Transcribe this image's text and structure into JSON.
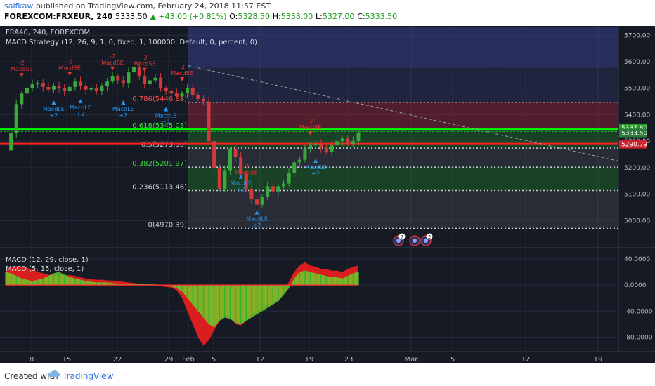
{
  "header": {
    "user": "saifkaw",
    "published": "published on TradingView.com, February 24, 2018 11:57 EST"
  },
  "symbol_line": {
    "symbol": "FOREXCOM:FRXEUR, 240",
    "price": "5333.50",
    "change": "▲ +43.00 (+0.81%)",
    "o_label": "O:",
    "o": "5328.50",
    "h_label": "H:",
    "h": "5338.00",
    "l_label": "L:",
    "l": "5327.00",
    "c_label": "C:",
    "c": "5333.50"
  },
  "legend": {
    "instrument": "FRA40, 240, FOREXCOM",
    "strategy": "MACD Strategy (12, 26, 9, 1, 0, fixed, 1, 100000, Default, 0, percent, 0)",
    "macd1": "MACD (12, 29, close, 1)",
    "macd2": "MACD (5, 15, close, 1)"
  },
  "colors": {
    "background": "#161a25",
    "bull": "#3aa83a",
    "bear": "#d03a3a",
    "fib_green": "#00ff00",
    "fib_red": "#ff2020",
    "label_text": "#cfd3dc",
    "signal_blue": "#2196f3",
    "signal_red": "#e53935"
  },
  "chart_data": [
    {
      "type": "candlestick",
      "title": "",
      "ylim": [
        4900,
        5730
      ],
      "y_ticks": [
        "5700.00",
        "5600.00",
        "5500.00",
        "5400.00",
        "5300.00",
        "5200.00",
        "5100.00",
        "5000.00"
      ],
      "x_ticks": [
        "8",
        "15",
        "22",
        "29",
        "Feb",
        "5",
        "12",
        "19",
        "23",
        "Mar",
        "5",
        "12",
        "19"
      ],
      "price_badges": [
        {
          "value": "5337.80",
          "color": "#1f9a1f"
        },
        {
          "value": "5333.50",
          "color": "#2a7a3a"
        },
        {
          "value": "5290.79",
          "color": "#d0202a"
        }
      ],
      "fib_levels": [
        {
          "label": "0.786(5446.88)",
          "ratio": 0.786,
          "value": 5446.88
        },
        {
          "label": "0.618(5345.03)",
          "ratio": 0.618,
          "value": 5345.03
        },
        {
          "label": "0.5(5273.50)",
          "ratio": 0.5,
          "value": 5273.5
        },
        {
          "label": "0.382(5201.97)",
          "ratio": 0.382,
          "value": 5201.97
        },
        {
          "label": "0.236(5113.46)",
          "ratio": 0.236,
          "value": 5113.46
        },
        {
          "label": "0(4970.39)",
          "ratio": 0,
          "value": 4970.39
        }
      ],
      "horizontal_lines": [
        {
          "value": 5345.03,
          "color": "#00ff00"
        },
        {
          "value": 5290.79,
          "color": "#ff2020"
        }
      ],
      "price_path": [
        5265,
        5330,
        5440,
        5480,
        5500,
        5515,
        5520,
        5505,
        5495,
        5510,
        5500,
        5490,
        5505,
        5525,
        5510,
        5495,
        5500,
        5490,
        5510,
        5525,
        5545,
        5530,
        5520,
        5560,
        5580,
        5545,
        5515,
        5530,
        5540,
        5500,
        5490,
        5480,
        5470,
        5480,
        5500,
        5475,
        5460,
        5450,
        5300,
        5200,
        5120,
        5190,
        5270,
        5240,
        5180,
        5120,
        5080,
        5060,
        5090,
        5130,
        5110,
        5130,
        5140,
        5180,
        5220,
        5230,
        5270,
        5285,
        5290,
        5275,
        5260,
        5285,
        5300,
        5310,
        5290,
        5300,
        5333
      ],
      "signals": [
        {
          "type": "MacdSE",
          "note": "-2",
          "x": 3,
          "value": 5520
        },
        {
          "type": "MacdSE",
          "note": "-2",
          "x": 12,
          "value": 5525
        },
        {
          "type": "MacdSE",
          "note": "-2",
          "x": 20,
          "value": 5545
        },
        {
          "type": "MacdSE",
          "note": "-2",
          "x": 26,
          "value": 5540
        },
        {
          "type": "MacdSE",
          "note": "-2",
          "x": 33,
          "value": 5505
        },
        {
          "type": "MacdLE",
          "note": "+2",
          "x": 9,
          "value": 5470
        },
        {
          "type": "MacdLE",
          "note": "+2",
          "x": 14,
          "value": 5475
        },
        {
          "type": "MacdLE",
          "note": "+2",
          "x": 22,
          "value": 5470
        },
        {
          "type": "MacdLE",
          "note": "+2",
          "x": 30,
          "value": 5445
        },
        {
          "type": "MacdLE",
          "note": "+2",
          "x": 44,
          "value": 5190
        },
        {
          "type": "MacdLE",
          "note": "+2",
          "x": 47,
          "value": 5055
        },
        {
          "type": "MacdLE",
          "note": "+2",
          "x": 58,
          "value": 5250
        },
        {
          "type": "MacdSE",
          "note": "-2",
          "x": 45,
          "value": 5130
        },
        {
          "type": "MacdSE",
          "note": "-2",
          "x": 57,
          "value": 5300
        }
      ],
      "event_icons": [
        "7",
        "",
        "2"
      ]
    },
    {
      "type": "area",
      "title": "",
      "ylim": [
        -100,
        55
      ],
      "y_ticks": [
        "40.0000",
        "0.0000",
        "-40.0000",
        "-80.0000"
      ],
      "series": [
        {
          "values": [
            25,
            27,
            29,
            28,
            26,
            24,
            20,
            18,
            16,
            14,
            14,
            15,
            15,
            14,
            12,
            10,
            9,
            8,
            8,
            7,
            7,
            6,
            5,
            4,
            3,
            2,
            1,
            0,
            -1,
            -2,
            -3,
            -4,
            -8,
            -20,
            -40,
            -60,
            -80,
            -93,
            -85,
            -70,
            -55,
            -45,
            -50,
            -60,
            -62,
            -55,
            -45,
            -40,
            -35,
            -30,
            -28,
            -22,
            -10,
            5,
            20,
            30,
            35,
            30,
            28,
            25,
            24,
            22,
            22,
            20,
            24,
            28,
            30
          ]
        },
        {
          "values": [
            20,
            18,
            14,
            10,
            8,
            6,
            8,
            10,
            14,
            18,
            20,
            16,
            12,
            10,
            8,
            6,
            5,
            4,
            4,
            4,
            3,
            2,
            2,
            2,
            2,
            2,
            2,
            1,
            1,
            0,
            -1,
            -2,
            -5,
            -10,
            -20,
            -30,
            -40,
            -50,
            -60,
            -65,
            -55,
            -50,
            -52,
            -58,
            -60,
            -55,
            -50,
            -45,
            -40,
            -35,
            -30,
            -25,
            -15,
            -5,
            10,
            20,
            22,
            20,
            18,
            16,
            14,
            12,
            12,
            10,
            14,
            18,
            20
          ]
        }
      ]
    }
  ],
  "footer": {
    "created_with": "Created with",
    "brand": "TradingView"
  }
}
